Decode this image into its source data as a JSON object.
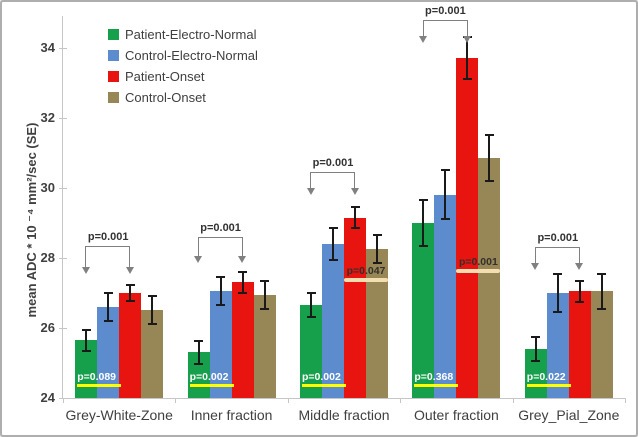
{
  "figure": {
    "background": "#ffffff",
    "border_color": "#aeaeae"
  },
  "chart_data": {
    "type": "bar",
    "title": "",
    "ylabel": "mean ADC * 10 ⁻⁴ mm²/sec  (SE)",
    "xlabel": "",
    "ylim": [
      24,
      34.91
    ],
    "yticks": [
      24,
      26,
      28,
      30,
      32,
      34
    ],
    "grid": false,
    "legend_position": "top-left-inside",
    "axis_color": "#c6c6c6",
    "text_color": "#404040",
    "error_bar_color": "#1a1a1a",
    "categories": [
      "Grey-White-Zone",
      "Inner fraction",
      "Middle fraction",
      "Outer fraction",
      "Grey_Pial_Zone"
    ],
    "series": [
      {
        "name": "Patient-Electro-Normal",
        "color": "#16a04c",
        "values": [
          25.65,
          25.3,
          26.65,
          29.0,
          25.4
        ],
        "errors": [
          0.3,
          0.32,
          0.35,
          0.65,
          0.35
        ]
      },
      {
        "name": "Control-Electro-Normal",
        "color": "#5c8ccd",
        "values": [
          26.6,
          27.05,
          28.4,
          29.8,
          27.0
        ],
        "errors": [
          0.4,
          0.4,
          0.45,
          0.7,
          0.55
        ]
      },
      {
        "name": "Patient-Onset",
        "color": "#e81410",
        "values": [
          27.0,
          27.3,
          29.15,
          33.7,
          27.05
        ],
        "errors": [
          0.22,
          0.3,
          0.3,
          0.6,
          0.3
        ]
      },
      {
        "name": "Control-Onset",
        "color": "#978756",
        "values": [
          26.5,
          26.95,
          28.25,
          30.85,
          27.05
        ],
        "errors": [
          0.4,
          0.4,
          0.4,
          0.65,
          0.5
        ]
      }
    ],
    "inbar_labels": {
      "texts": [
        "p=0.089",
        "p=0.002",
        "p=0.002",
        "p=0.368",
        "p=0.022"
      ],
      "text_color": "#ffffff",
      "underline_color": "#ffff00"
    },
    "mid_labels": {
      "text_color": "#33302c",
      "underline_color": "#f2deb0",
      "items": [
        {
          "group": 2,
          "text": "p=0.047",
          "y": 27.6
        },
        {
          "group": 3,
          "text": "p=0.001",
          "y": 27.85
        }
      ]
    },
    "brackets": {
      "line_color": "#808080",
      "text_color": "#333333",
      "from_series": 0,
      "to_series": 2,
      "items": [
        {
          "group": 0,
          "text": "p=0.001",
          "top": 28.35,
          "tip": 27.55
        },
        {
          "group": 1,
          "text": "p=0.001",
          "top": 28.6,
          "tip": 27.85
        },
        {
          "group": 2,
          "text": "p=0.001",
          "top": 30.45,
          "tip": 29.8
        },
        {
          "group": 3,
          "text": "p=0.001",
          "top": 34.8,
          "tip": 34.15
        },
        {
          "group": 4,
          "text": "p=0.001",
          "top": 28.3,
          "tip": 27.65
        }
      ]
    }
  }
}
